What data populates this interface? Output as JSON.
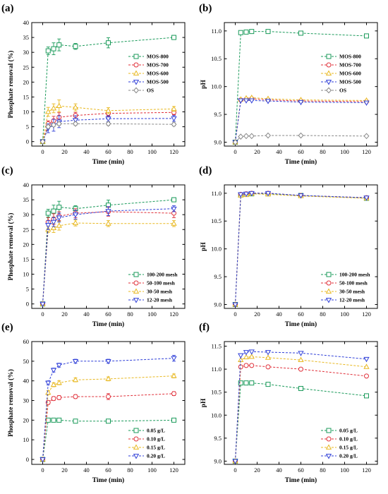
{
  "figure": {
    "panels": [
      {
        "id": "a",
        "label": "(a)"
      },
      {
        "id": "b",
        "label": "(b)"
      },
      {
        "id": "c",
        "label": "(c)"
      },
      {
        "id": "d",
        "label": "(d)"
      },
      {
        "id": "e",
        "label": "(e)"
      },
      {
        "id": "f",
        "label": "(f)"
      }
    ]
  },
  "chart_data": [
    {
      "panel": "(a)",
      "type": "line",
      "xlabel": "Time (min)",
      "ylabel": "Phosphate removal (%)",
      "xlim": [
        -10,
        130
      ],
      "ylim": [
        -1.5,
        40
      ],
      "xticks": [
        0,
        20,
        40,
        60,
        80,
        100,
        120
      ],
      "yticks": [
        0,
        5,
        10,
        15,
        20,
        25,
        30,
        35,
        40
      ],
      "ytick_labels": [
        "0",
        "5",
        "10",
        "15",
        "20",
        "25",
        "30",
        "35",
        "40"
      ],
      "x": [
        0,
        5,
        10,
        15,
        30,
        60,
        120
      ],
      "legend_position": "center-right",
      "series": [
        {
          "name": "MOS-800",
          "color": "#1a9a5a",
          "marker": "square",
          "values": [
            0,
            30.5,
            31.2,
            32.5,
            32.0,
            33.2,
            35.0
          ],
          "errors": [
            0,
            1.3,
            2.0,
            2.0,
            1.0,
            1.7,
            0.7
          ]
        },
        {
          "name": "MOS-700",
          "color": "#e0303a",
          "marker": "circle",
          "values": [
            0,
            6.0,
            7.0,
            8.2,
            8.8,
            9.5,
            9.8
          ],
          "errors": [
            0,
            1.0,
            1.5,
            1.5,
            1.0,
            1.0,
            0.8
          ]
        },
        {
          "name": "MOS-600",
          "color": "#e8b820",
          "marker": "triangle",
          "values": [
            0,
            10.0,
            11.2,
            12.0,
            11.5,
            10.4,
            11.0
          ],
          "errors": [
            0,
            1.5,
            1.5,
            2.0,
            1.2,
            1.0,
            0.8
          ]
        },
        {
          "name": "MOS-500",
          "color": "#2f3fd8",
          "marker": "triangle-down",
          "values": [
            0,
            4.5,
            5.5,
            6.7,
            7.2,
            7.7,
            7.8
          ],
          "errors": [
            0,
            1.5,
            2.0,
            2.0,
            1.5,
            1.0,
            1.0
          ]
        },
        {
          "name": "OS",
          "color": "#888888",
          "marker": "diamond",
          "values": [
            0,
            5.0,
            5.6,
            6.0,
            6.0,
            6.0,
            5.8
          ],
          "errors": [
            0,
            0.5,
            0.5,
            0.5,
            0.5,
            0.5,
            0.5
          ]
        }
      ]
    },
    {
      "panel": "(b)",
      "type": "line",
      "xlabel": "Time (min)",
      "ylabel": "pH",
      "xlim": [
        -10,
        130
      ],
      "ylim": [
        8.93,
        11.15
      ],
      "xticks": [
        0,
        20,
        40,
        60,
        80,
        100,
        120
      ],
      "yticks": [
        9.0,
        9.5,
        10.0,
        10.5,
        11.0
      ],
      "ytick_labels": [
        "9.0",
        "9.5",
        "10.0",
        "10.5",
        "11.0"
      ],
      "x": [
        0,
        5,
        10,
        15,
        30,
        60,
        120
      ],
      "legend_position": "center-right",
      "series": [
        {
          "name": "MOS-800",
          "color": "#1a9a5a",
          "marker": "square",
          "values": [
            9.0,
            10.97,
            10.98,
            10.99,
            10.99,
            10.96,
            10.91
          ]
        },
        {
          "name": "MOS-700",
          "color": "#e0303a",
          "marker": "circle",
          "values": [
            9.0,
            9.76,
            9.77,
            9.78,
            9.76,
            9.74,
            9.73
          ]
        },
        {
          "name": "MOS-600",
          "color": "#e8b820",
          "marker": "triangle",
          "values": [
            9.0,
            9.77,
            9.79,
            9.8,
            9.78,
            9.76,
            9.75
          ]
        },
        {
          "name": "MOS-500",
          "color": "#2f3fd8",
          "marker": "triangle-down",
          "values": [
            9.0,
            9.75,
            9.75,
            9.75,
            9.74,
            9.72,
            9.71
          ]
        },
        {
          "name": "OS",
          "color": "#888888",
          "marker": "diamond",
          "values": [
            9.0,
            9.1,
            9.11,
            9.11,
            9.12,
            9.12,
            9.11
          ]
        }
      ]
    },
    {
      "panel": "(c)",
      "type": "line",
      "xlabel": "Time (min)",
      "ylabel": "Phosphate removal (%)",
      "xlim": [
        -10,
        130
      ],
      "ylim": [
        -1.5,
        40
      ],
      "xticks": [
        0,
        20,
        40,
        60,
        80,
        100,
        120
      ],
      "yticks": [
        0,
        5,
        10,
        15,
        20,
        25,
        30,
        35,
        40
      ],
      "ytick_labels": [
        "0",
        "5",
        "10",
        "15",
        "20",
        "25",
        "30",
        "35",
        "40"
      ],
      "x": [
        0,
        5,
        10,
        15,
        30,
        60,
        120
      ],
      "legend_position": "bottom-right",
      "series": [
        {
          "name": "100-200 mesh",
          "color": "#1a9a5a",
          "marker": "square",
          "values": [
            0,
            30.5,
            31.2,
            32.5,
            32.0,
            33.2,
            35.0
          ],
          "errors": [
            0,
            1.3,
            2.0,
            2.0,
            1.0,
            1.7,
            0.7
          ]
        },
        {
          "name": "50-100 mesh",
          "color": "#e0303a",
          "marker": "circle",
          "values": [
            0,
            27.5,
            28.5,
            29.5,
            30.5,
            31.0,
            30.5
          ],
          "errors": [
            0,
            1.5,
            1.8,
            1.5,
            1.5,
            1.5,
            1.5
          ]
        },
        {
          "name": "30-50 mesh",
          "color": "#e8b820",
          "marker": "triangle",
          "values": [
            0,
            25.0,
            25.5,
            26.3,
            27.2,
            27.0,
            27.0
          ],
          "errors": [
            0,
            1.0,
            1.5,
            1.5,
            1.0,
            1.0,
            1.0
          ]
        },
        {
          "name": "12-20 mesh",
          "color": "#2f3fd8",
          "marker": "triangle-down",
          "values": [
            0,
            26.5,
            27.5,
            29.0,
            30.0,
            31.2,
            32.0
          ],
          "errors": [
            0,
            1.5,
            1.5,
            1.5,
            1.5,
            1.5,
            1.0
          ]
        }
      ]
    },
    {
      "panel": "(d)",
      "type": "line",
      "xlabel": "Time (min)",
      "ylabel": "pH",
      "xlim": [
        -10,
        130
      ],
      "ylim": [
        8.93,
        11.15
      ],
      "xticks": [
        0,
        20,
        40,
        60,
        80,
        100,
        120
      ],
      "yticks": [
        9.0,
        9.5,
        10.0,
        10.5,
        11.0
      ],
      "ytick_labels": [
        "9.0",
        "9.5",
        "10.0",
        "10.5",
        "11.0"
      ],
      "x": [
        0,
        5,
        10,
        15,
        30,
        60,
        120
      ],
      "legend_position": "bottom-right",
      "series": [
        {
          "name": "100-200 mesh",
          "color": "#1a9a5a",
          "marker": "square",
          "values": [
            9.0,
            10.97,
            10.98,
            10.99,
            10.99,
            10.96,
            10.91
          ]
        },
        {
          "name": "50-100 mesh",
          "color": "#e0303a",
          "marker": "circle",
          "values": [
            9.0,
            10.98,
            10.99,
            11.0,
            11.0,
            10.96,
            10.92
          ]
        },
        {
          "name": "30-50 mesh",
          "color": "#e8b820",
          "marker": "triangle",
          "values": [
            9.0,
            10.96,
            10.97,
            10.99,
            10.98,
            10.95,
            10.91
          ]
        },
        {
          "name": "12-20 mesh",
          "color": "#2f3fd8",
          "marker": "triangle-down",
          "values": [
            9.0,
            10.98,
            10.99,
            11.0,
            11.0,
            10.96,
            10.92
          ]
        }
      ]
    },
    {
      "panel": "(e)",
      "type": "line",
      "xlabel": "Time (min)",
      "ylabel": "Phosphate removal (%)",
      "xlim": [
        -10,
        130
      ],
      "ylim": [
        -2.5,
        60
      ],
      "xticks": [
        0,
        20,
        40,
        60,
        80,
        100,
        120
      ],
      "yticks": [
        0,
        10,
        20,
        30,
        40,
        50,
        60
      ],
      "ytick_labels": [
        "0",
        "10",
        "20",
        "30",
        "40",
        "50",
        "60"
      ],
      "x": [
        0,
        5,
        10,
        15,
        30,
        60,
        120
      ],
      "legend_position": "bottom-right",
      "series": [
        {
          "name": "0.05 g/L",
          "color": "#1a9a5a",
          "marker": "square",
          "values": [
            0,
            20.0,
            20.0,
            20.0,
            19.5,
            19.5,
            20.0
          ],
          "errors": [
            0,
            0.5,
            0.5,
            0.5,
            0.5,
            0.5,
            0.5
          ]
        },
        {
          "name": "0.10 g/L",
          "color": "#e0303a",
          "marker": "circle",
          "values": [
            0,
            29.0,
            31.0,
            31.5,
            32.0,
            32.0,
            33.5
          ],
          "errors": [
            0,
            1.0,
            1.0,
            1.0,
            1.0,
            1.5,
            1.0
          ]
        },
        {
          "name": "0.15 g/L",
          "color": "#e8b820",
          "marker": "triangle",
          "values": [
            0,
            34.0,
            38.0,
            39.0,
            40.5,
            41.0,
            42.5
          ],
          "errors": [
            0,
            1.0,
            1.0,
            1.0,
            1.0,
            1.0,
            1.0
          ]
        },
        {
          "name": "0.20 g/L",
          "color": "#2f3fd8",
          "marker": "triangle-down",
          "values": [
            0,
            39.0,
            45.5,
            48.0,
            50.0,
            50.0,
            51.5
          ],
          "errors": [
            0,
            1.0,
            1.0,
            1.0,
            1.0,
            1.0,
            1.5
          ]
        }
      ]
    },
    {
      "panel": "(f)",
      "type": "line",
      "xlabel": "Time (min)",
      "ylabel": "pH",
      "xlim": [
        -10,
        130
      ],
      "ylim": [
        8.93,
        11.6
      ],
      "xticks": [
        0,
        20,
        40,
        60,
        80,
        100,
        120
      ],
      "yticks": [
        9.0,
        9.5,
        10.0,
        10.5,
        11.0,
        11.5
      ],
      "ytick_labels": [
        "9.0",
        "9.5",
        "10.0",
        "10.5",
        "11.0",
        "11.5"
      ],
      "x": [
        0,
        5,
        10,
        15,
        30,
        60,
        120
      ],
      "legend_position": "bottom-right",
      "series": [
        {
          "name": "0.05 g/L",
          "color": "#1a9a5a",
          "marker": "square",
          "values": [
            9.0,
            10.7,
            10.7,
            10.7,
            10.67,
            10.58,
            10.42
          ]
        },
        {
          "name": "0.10 g/L",
          "color": "#e0303a",
          "marker": "circle",
          "values": [
            9.0,
            11.05,
            11.08,
            11.08,
            11.05,
            11.0,
            10.85
          ]
        },
        {
          "name": "0.15 g/L",
          "color": "#e8b820",
          "marker": "triangle",
          "values": [
            9.0,
            11.2,
            11.26,
            11.27,
            11.25,
            11.2,
            11.05
          ]
        },
        {
          "name": "0.20 g/L",
          "color": "#2f3fd8",
          "marker": "triangle-down",
          "values": [
            9.0,
            11.3,
            11.37,
            11.38,
            11.37,
            11.35,
            11.22
          ]
        }
      ]
    }
  ]
}
